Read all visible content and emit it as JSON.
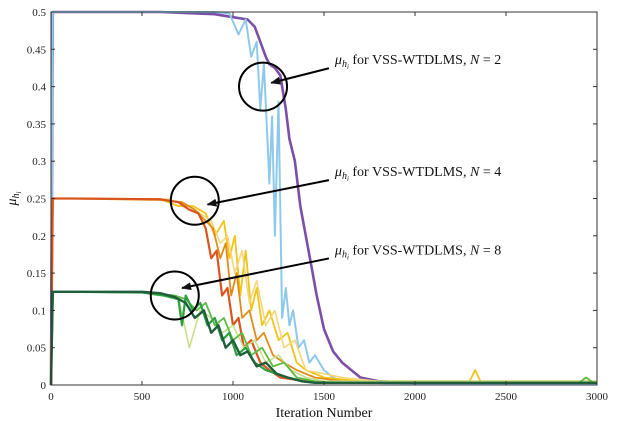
{
  "chart_data": {
    "type": "line",
    "xlabel": "Iteration Number",
    "ylabel": "μ",
    "ylabel_sub": "h",
    "ylabel_subsub": "i",
    "xlim": [
      0,
      3000
    ],
    "ylim": [
      0,
      0.5
    ],
    "xticks": [
      0,
      500,
      1000,
      1500,
      2000,
      2500,
      3000
    ],
    "yticks": [
      0,
      0.05,
      0.1,
      0.15,
      0.2,
      0.25,
      0.3,
      0.35,
      0.4,
      0.45,
      0.5
    ],
    "grid": false,
    "series": [
      {
        "group": "N=2",
        "color": "#7b4fa8",
        "width": 2.6,
        "x": [
          0,
          10,
          100,
          600,
          900,
          1000,
          1080,
          1120,
          1150,
          1180,
          1200,
          1230,
          1260,
          1290,
          1310,
          1340,
          1370,
          1400,
          1430,
          1460,
          1500,
          1550,
          1600,
          1650,
          1700,
          1800,
          2000,
          3000
        ],
        "y": [
          0,
          0.5,
          0.5,
          0.5,
          0.497,
          0.493,
          0.49,
          0.48,
          0.46,
          0.44,
          0.43,
          0.425,
          0.415,
          0.37,
          0.33,
          0.3,
          0.24,
          0.2,
          0.16,
          0.12,
          0.075,
          0.045,
          0.03,
          0.02,
          0.01,
          0.005,
          0.003,
          0.003
        ]
      },
      {
        "group": "N=2",
        "color": "#8fc9ea",
        "width": 2.0,
        "x": [
          0,
          10,
          100,
          700,
          900,
          980,
          1030,
          1070,
          1100,
          1130,
          1150,
          1170,
          1185,
          1200,
          1215,
          1230,
          1250,
          1270,
          1290,
          1310,
          1330,
          1360,
          1390,
          1420,
          1450,
          1500,
          1550,
          1600,
          1700,
          2000,
          3000
        ],
        "y": [
          0,
          0.5,
          0.5,
          0.5,
          0.5,
          0.498,
          0.47,
          0.49,
          0.44,
          0.46,
          0.37,
          0.43,
          0.35,
          0.27,
          0.36,
          0.2,
          0.38,
          0.09,
          0.13,
          0.08,
          0.1,
          0.05,
          0.06,
          0.03,
          0.04,
          0.02,
          0.01,
          0.005,
          0.003,
          0.002,
          0.002
        ]
      },
      {
        "group": "N=4",
        "color": "#f0c419",
        "width": 1.8,
        "x": [
          0,
          10,
          100,
          600,
          700,
          780,
          850,
          900,
          950,
          980,
          1010,
          1040,
          1070,
          1100,
          1130,
          1160,
          1200,
          1250,
          1300,
          1350,
          1400,
          1500,
          1700,
          2300,
          2330,
          2360,
          3000
        ],
        "y": [
          0,
          0.25,
          0.25,
          0.249,
          0.24,
          0.24,
          0.23,
          0.2,
          0.22,
          0.17,
          0.2,
          0.12,
          0.18,
          0.1,
          0.13,
          0.08,
          0.1,
          0.06,
          0.07,
          0.03,
          0.02,
          0.01,
          0.005,
          0.005,
          0.02,
          0.005,
          0.005
        ]
      },
      {
        "group": "N=4",
        "color": "#f5d67a",
        "width": 1.6,
        "x": [
          0,
          10,
          100,
          650,
          760,
          820,
          880,
          930,
          970,
          1010,
          1050,
          1090,
          1130,
          1180,
          1230,
          1280,
          1340,
          1400,
          1500,
          1600,
          1800,
          3000
        ],
        "y": [
          0,
          0.25,
          0.25,
          0.249,
          0.24,
          0.23,
          0.22,
          0.19,
          0.2,
          0.15,
          0.18,
          0.11,
          0.14,
          0.08,
          0.1,
          0.05,
          0.06,
          0.02,
          0.015,
          0.01,
          0.005,
          0.005
        ]
      },
      {
        "group": "N=4",
        "color": "#e08c1a",
        "width": 1.8,
        "x": [
          0,
          10,
          100,
          600,
          720,
          790,
          850,
          890,
          930,
          960,
          990,
          1020,
          1050,
          1090,
          1130,
          1170,
          1220,
          1280,
          1350,
          1450,
          1600,
          3000
        ],
        "y": [
          0,
          0.25,
          0.25,
          0.248,
          0.245,
          0.235,
          0.22,
          0.21,
          0.17,
          0.19,
          0.12,
          0.15,
          0.09,
          0.1,
          0.06,
          0.07,
          0.04,
          0.03,
          0.02,
          0.01,
          0.005,
          0.005
        ]
      },
      {
        "group": "N=4",
        "color": "#d9541e",
        "width": 2.2,
        "x": [
          0,
          10,
          100,
          600,
          700,
          760,
          810,
          850,
          880,
          910,
          940,
          970,
          1000,
          1030,
          1060,
          1100,
          1150,
          1200,
          1260,
          1320,
          1400,
          1500,
          3000
        ],
        "y": [
          0,
          0.25,
          0.25,
          0.249,
          0.245,
          0.235,
          0.23,
          0.21,
          0.17,
          0.18,
          0.12,
          0.13,
          0.08,
          0.09,
          0.05,
          0.06,
          0.03,
          0.02,
          0.01,
          0.008,
          0.005,
          0.003,
          0.003
        ]
      },
      {
        "group": "N=8",
        "color": "#c8df8c",
        "width": 1.6,
        "x": [
          0,
          10,
          100,
          500,
          600,
          700,
          760,
          820,
          880,
          940,
          1000,
          1060,
          1120,
          1180,
          1250,
          1320,
          1400,
          1500,
          3000
        ],
        "y": [
          0,
          0.125,
          0.125,
          0.124,
          0.12,
          0.118,
          0.05,
          0.1,
          0.09,
          0.07,
          0.08,
          0.05,
          0.06,
          0.03,
          0.04,
          0.02,
          0.01,
          0.005,
          0.005
        ]
      },
      {
        "group": "N=8",
        "color": "#5dbb46",
        "width": 1.8,
        "x": [
          0,
          10,
          100,
          500,
          600,
          680,
          740,
          800,
          850,
          900,
          950,
          1000,
          1050,
          1100,
          1160,
          1220,
          1280,
          1350,
          1450,
          1550,
          2900,
          2940,
          2980,
          3000
        ],
        "y": [
          0,
          0.125,
          0.125,
          0.124,
          0.122,
          0.12,
          0.115,
          0.1,
          0.11,
          0.08,
          0.09,
          0.06,
          0.07,
          0.04,
          0.05,
          0.025,
          0.03,
          0.01,
          0.005,
          0.003,
          0.003,
          0.01,
          0.003,
          0.003
        ]
      },
      {
        "group": "N=8",
        "color": "#2ea043",
        "width": 2.2,
        "x": [
          0,
          10,
          100,
          500,
          620,
          700,
          720,
          740,
          780,
          820,
          860,
          900,
          940,
          980,
          1020,
          1070,
          1120,
          1180,
          1240,
          1300,
          1380,
          1460,
          3000
        ],
        "y": [
          0,
          0.125,
          0.125,
          0.124,
          0.12,
          0.115,
          0.08,
          0.12,
          0.1,
          0.11,
          0.08,
          0.09,
          0.06,
          0.07,
          0.04,
          0.05,
          0.03,
          0.02,
          0.015,
          0.01,
          0.005,
          0.003,
          0.003
        ]
      },
      {
        "group": "N=8",
        "color": "#1f5e3a",
        "width": 2.4,
        "x": [
          0,
          10,
          100,
          500,
          600,
          680,
          740,
          790,
          840,
          880,
          920,
          960,
          1000,
          1040,
          1080,
          1130,
          1180,
          1240,
          1300,
          1380,
          1450,
          3000
        ],
        "y": [
          0,
          0.125,
          0.125,
          0.125,
          0.123,
          0.118,
          0.11,
          0.09,
          0.1,
          0.07,
          0.08,
          0.05,
          0.06,
          0.04,
          0.045,
          0.025,
          0.03,
          0.015,
          0.01,
          0.005,
          0.003,
          0.003
        ]
      }
    ],
    "annotations": [
      {
        "label": "for VSS-WTDLMS, ",
        "n_label": "N",
        "n_value": " = 2",
        "circle_x": 1165,
        "circle_y": 0.4,
        "arrow_to_x": 1210,
        "arrow_to_y": 0.405,
        "text_x": 1560,
        "text_y": 0.43
      },
      {
        "label": "for VSS-WTDLMS, ",
        "n_label": "N",
        "n_value": " = 4",
        "circle_x": 790,
        "circle_y": 0.247,
        "arrow_to_x": 860,
        "arrow_to_y": 0.242,
        "text_x": 1560,
        "text_y": 0.28
      },
      {
        "label": "for VSS-WTDLMS, ",
        "n_label": "N",
        "n_value": " = 8",
        "circle_x": 680,
        "circle_y": 0.12,
        "arrow_to_x": 720,
        "arrow_to_y": 0.13,
        "text_x": 1560,
        "text_y": 0.175
      }
    ]
  }
}
